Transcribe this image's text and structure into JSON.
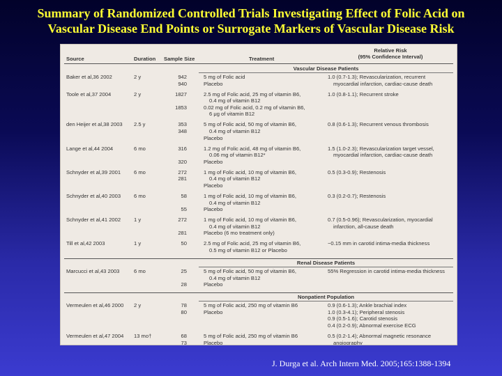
{
  "title": {
    "line1": "Summary of Randomized Controlled Trials Investigating Effect of Folic Acid on",
    "line2": "Vascular Disease End Points or Surrogate Markers of Vascular Disease Risk"
  },
  "table": {
    "headers": {
      "source": "Source",
      "duration": "Duration",
      "sample_size": "Sample Size",
      "treatment": "Treatment",
      "rr_line1": "Relative Risk",
      "rr_line2": "(95% Confidence Interval)"
    },
    "sections": [
      {
        "title": "Vascular Disease Patients",
        "rows": [
          {
            "source": "Baker et al,36 2002",
            "duration": "2 y",
            "n": [
              "942",
              "940"
            ],
            "treatment": [
              "5 mg of Folic acid",
              "Placebo"
            ],
            "rr": [
              "1.0 (0.7-1.3); Revascularization, recurrent",
              "   myocardial infarction, cardiac-cause death"
            ]
          },
          {
            "source": "Toole et al,37 2004",
            "duration": "2 y",
            "n": [
              "1827",
              "",
              "1853",
              ""
            ],
            "treatment": [
              "2.5 mg of Folic acid, 25 mg of vitamin B6,",
              "   0.4 mg of vitamin B12",
              "0.02 mg of Folic acid, 0.2 mg of vitamin B6,",
              "   6 μg of vitamin B12"
            ],
            "rr": [
              "1.0 (0.8-1.1); Recurrent stroke"
            ]
          },
          {
            "source": "den Heijer et al,38 2003",
            "duration": "2.5 y",
            "n": [
              "353",
              "348",
              ""
            ],
            "treatment": [
              "5 mg of Folic acid, 50 mg of vitamin B6,",
              "   0.4 mg of vitamin B12",
              "Placebo"
            ],
            "rr": [
              "0.8 (0.6-1.3); Recurrent venous thrombosis"
            ]
          },
          {
            "source": "Lange et al,44 2004",
            "duration": "6 mo",
            "n": [
              "316",
              "",
              "320"
            ],
            "treatment": [
              "1.2 mg of Folic acid, 48 mg of vitamin B6,",
              "   0.06 mg of vitamin B12*",
              "Placebo"
            ],
            "rr": [
              "1.5 (1.0-2.3); Revascularization target vessel,",
              "   myocardial infarction, cardiac-cause death"
            ]
          },
          {
            "source": "Schnyder et al,39 2001",
            "duration": "6 mo",
            "n": [
              "272",
              "281",
              ""
            ],
            "treatment": [
              "1 mg of Folic acid, 10 mg of vitamin B6,",
              "   0.4 mg of vitamin B12",
              "Placebo"
            ],
            "rr": [
              "0.5 (0.3-0.9); Restenosis"
            ]
          },
          {
            "source": "Schnyder et al,40 2003",
            "duration": "6 mo",
            "n": [
              "58",
              "",
              "55"
            ],
            "treatment": [
              "1 mg of Folic acid, 10 mg of vitamin B6,",
              "   0.4 mg of vitamin B12",
              "Placebo"
            ],
            "rr": [
              "0.3 (0.2-0.7); Restenosis"
            ]
          },
          {
            "source": "Schnyder et al,41 2002",
            "duration": "1 y",
            "n": [
              "272",
              "",
              "281"
            ],
            "treatment": [
              "1 mg of Folic acid, 10 mg of vitamin B6,",
              "   0.4 mg of vitamin B12",
              "Placebo (6 mo treatment only)"
            ],
            "rr": [
              "0.7 (0.5-0.96); Revascularization, myocardial",
              "   infarction, all-cause death"
            ]
          },
          {
            "source": "Till et al,42 2003",
            "duration": "1 y",
            "n": [
              "50"
            ],
            "treatment": [
              "2.5 mg of Folic acid, 25 mg of vitamin B6,",
              "   0.5 mg of vitamin B12 or Placebo"
            ],
            "rr": [
              "−0.15 mm in carotid intima-media thickness"
            ]
          }
        ]
      },
      {
        "title": "Renal Disease Patients",
        "rows": [
          {
            "source": "Marcucci et al,43 2003",
            "duration": "6 mo",
            "n": [
              "25",
              "",
              "28"
            ],
            "treatment": [
              "5 mg of Folic acid, 50 mg of vitamin B6,",
              "   0.4 mg of vitamin B12",
              "Placebo"
            ],
            "rr": [
              "55% Regression in carotid intima-media thickness"
            ]
          }
        ]
      },
      {
        "title": "Nonpatient Population",
        "rows": [
          {
            "source": "Vermeulen et al,46 2000",
            "duration": "2 y",
            "n": [
              "78",
              "80",
              "",
              ""
            ],
            "treatment": [
              "5 mg of Folic acid, 250 mg of vitamin B6",
              "Placebo"
            ],
            "rr": [
              "0.9 (0.6-1.3); Ankle brachial index",
              "1.0 (0.3-4.1); Peripheral stenosis",
              "0.9 (0.5-1.6); Carotid stenosis",
              "0.4 (0.2-0.9); Abnormal exercise ECG"
            ]
          },
          {
            "source": "Vermeulen et al,47 2004",
            "duration": "13 mo†",
            "n": [
              "68",
              "73"
            ],
            "treatment": [
              "5 mg of Folic acid, 250 mg of vitamin B6",
              "Placebo"
            ],
            "rr": [
              "0.5 (0.2-1.4); Abnormal magnetic resonance",
              "   angiography"
            ]
          }
        ]
      }
    ]
  },
  "citation": "J. Durga et al. Arch Intern Med. 2005;165:1388-1394"
}
